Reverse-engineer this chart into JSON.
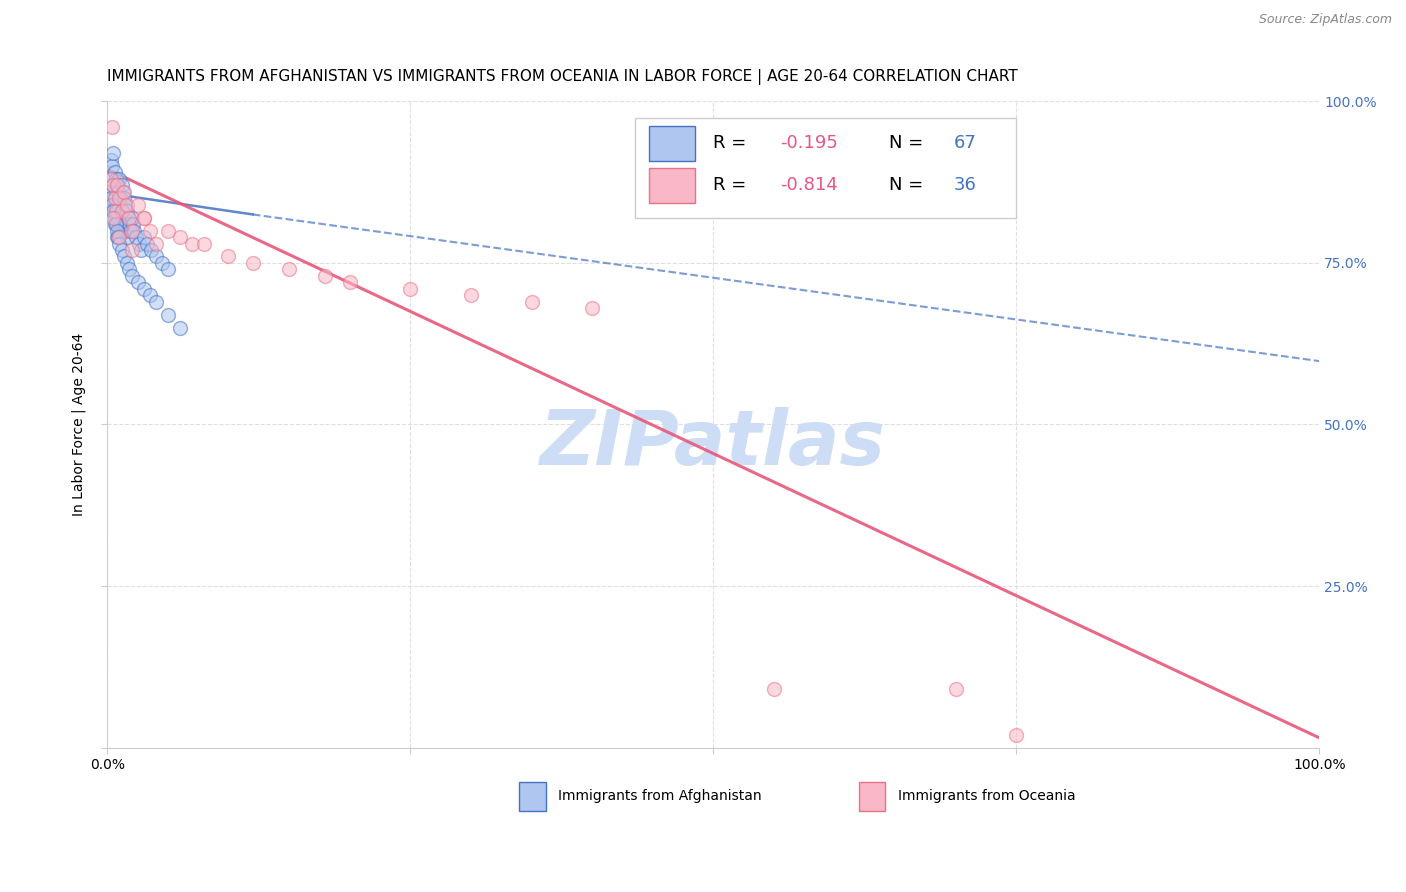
{
  "title": "IMMIGRANTS FROM AFGHANISTAN VS IMMIGRANTS FROM OCEANIA IN LABOR FORCE | AGE 20-64 CORRELATION CHART",
  "source": "Source: ZipAtlas.com",
  "ylabel": "In Labor Force | Age 20-64",
  "xlim": [
    0,
    1
  ],
  "ylim": [
    0,
    1
  ],
  "watermark": "ZIPatlas",
  "afghanistan_color": "#aec6f0",
  "afghanistan_edge_color": "#4472c4",
  "oceania_color": "#f9b8c8",
  "oceania_edge_color": "#e8728a",
  "afghanistan_R": -0.195,
  "afghanistan_N": 67,
  "oceania_R": -0.814,
  "oceania_N": 36,
  "legend_R_color": "#e8558a",
  "legend_N_color": "#4472c4",
  "afghanistan_scatter_x": [
    0.002,
    0.003,
    0.003,
    0.004,
    0.004,
    0.005,
    0.005,
    0.005,
    0.006,
    0.006,
    0.006,
    0.007,
    0.007,
    0.008,
    0.008,
    0.008,
    0.009,
    0.009,
    0.01,
    0.01,
    0.01,
    0.011,
    0.011,
    0.012,
    0.012,
    0.013,
    0.013,
    0.014,
    0.014,
    0.015,
    0.015,
    0.016,
    0.016,
    0.017,
    0.018,
    0.019,
    0.02,
    0.021,
    0.022,
    0.024,
    0.026,
    0.028,
    0.03,
    0.033,
    0.036,
    0.04,
    0.045,
    0.05,
    0.003,
    0.004,
    0.005,
    0.006,
    0.007,
    0.008,
    0.009,
    0.01,
    0.012,
    0.014,
    0.016,
    0.018,
    0.02,
    0.025,
    0.03,
    0.035,
    0.04,
    0.05,
    0.06
  ],
  "afghanistan_scatter_y": [
    0.88,
    0.91,
    0.86,
    0.9,
    0.84,
    0.92,
    0.87,
    0.83,
    0.89,
    0.85,
    0.81,
    0.88,
    0.84,
    0.87,
    0.83,
    0.79,
    0.86,
    0.82,
    0.88,
    0.84,
    0.8,
    0.85,
    0.81,
    0.87,
    0.83,
    0.86,
    0.82,
    0.85,
    0.81,
    0.84,
    0.8,
    0.83,
    0.79,
    0.82,
    0.81,
    0.8,
    0.82,
    0.81,
    0.8,
    0.79,
    0.78,
    0.77,
    0.79,
    0.78,
    0.77,
    0.76,
    0.75,
    0.74,
    0.85,
    0.84,
    0.83,
    0.82,
    0.81,
    0.8,
    0.79,
    0.78,
    0.77,
    0.76,
    0.75,
    0.74,
    0.73,
    0.72,
    0.71,
    0.7,
    0.69,
    0.67,
    0.65
  ],
  "oceania_scatter_x": [
    0.003,
    0.004,
    0.005,
    0.006,
    0.007,
    0.008,
    0.01,
    0.012,
    0.014,
    0.016,
    0.018,
    0.02,
    0.025,
    0.03,
    0.035,
    0.04,
    0.05,
    0.06,
    0.07,
    0.08,
    0.1,
    0.12,
    0.15,
    0.18,
    0.2,
    0.25,
    0.3,
    0.35,
    0.4,
    0.55,
    0.7,
    0.75,
    0.005,
    0.01,
    0.02,
    0.03
  ],
  "oceania_scatter_y": [
    0.88,
    0.96,
    0.87,
    0.85,
    0.83,
    0.87,
    0.85,
    0.83,
    0.86,
    0.84,
    0.82,
    0.8,
    0.84,
    0.82,
    0.8,
    0.78,
    0.8,
    0.79,
    0.78,
    0.78,
    0.76,
    0.75,
    0.74,
    0.73,
    0.72,
    0.71,
    0.7,
    0.69,
    0.68,
    0.09,
    0.09,
    0.02,
    0.82,
    0.79,
    0.77,
    0.82
  ],
  "afg_trendline_start_x": 0.0,
  "afg_trendline_start_y": 0.858,
  "afg_trendline_end_x": 0.12,
  "afg_trendline_end_y": 0.825,
  "afg_trendline_dash_end_x": 1.0,
  "afg_trendline_dash_end_y": 0.598,
  "oce_trendline_start_x": 0.0,
  "oce_trendline_start_y": 0.895,
  "oce_trendline_end_x": 1.0,
  "oce_trendline_end_y": 0.015,
  "grid_color": "#d8d8d8",
  "title_fontsize": 11,
  "axis_label_fontsize": 10,
  "tick_fontsize": 10,
  "legend_fontsize": 13,
  "source_fontsize": 9,
  "watermark_fontsize": 55,
  "watermark_color": "#ccddf5",
  "scatter_size": 100,
  "scatter_alpha": 0.55,
  "legend_box_color_afg": "#aec6f0",
  "legend_box_color_oce": "#f9b8c8",
  "legend_box_edge_afg": "#4472c4",
  "legend_box_edge_oce": "#e8728a"
}
